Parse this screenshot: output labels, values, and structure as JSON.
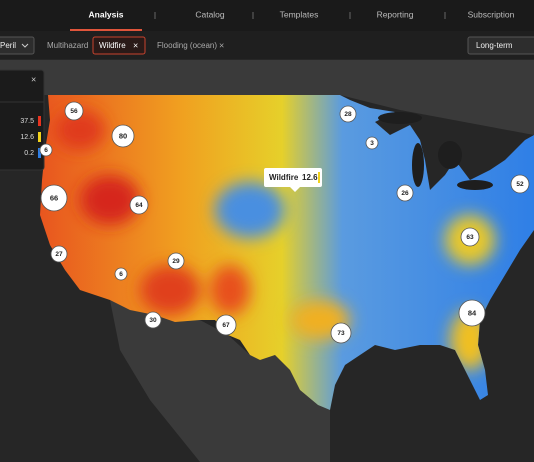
{
  "nav": {
    "tabs": [
      "Analysis",
      "Catalog",
      "Templates",
      "Reporting",
      "Subscription"
    ]
  },
  "filters": {
    "peril": "Peril",
    "chips": [
      {
        "label": "Multihazard"
      },
      {
        "label": "Wildfire"
      },
      {
        "label": "Flooding (ocean)"
      }
    ],
    "close": "×",
    "horizon": "Long-term"
  },
  "legend": {
    "close": "×",
    "items": [
      {
        "value": 37.5,
        "color": "#e8331f"
      },
      {
        "value": 12.6,
        "color": "#f2d21c"
      },
      {
        "value": 0.2,
        "color": "#2f7fe6"
      }
    ]
  },
  "tooltip": {
    "label": "Wildfire",
    "value": 12.6
  },
  "clusters": [
    56,
    80,
    28,
    3,
    6,
    66,
    64,
    26,
    52,
    27,
    29,
    6,
    63,
    30,
    67,
    73,
    84
  ]
}
